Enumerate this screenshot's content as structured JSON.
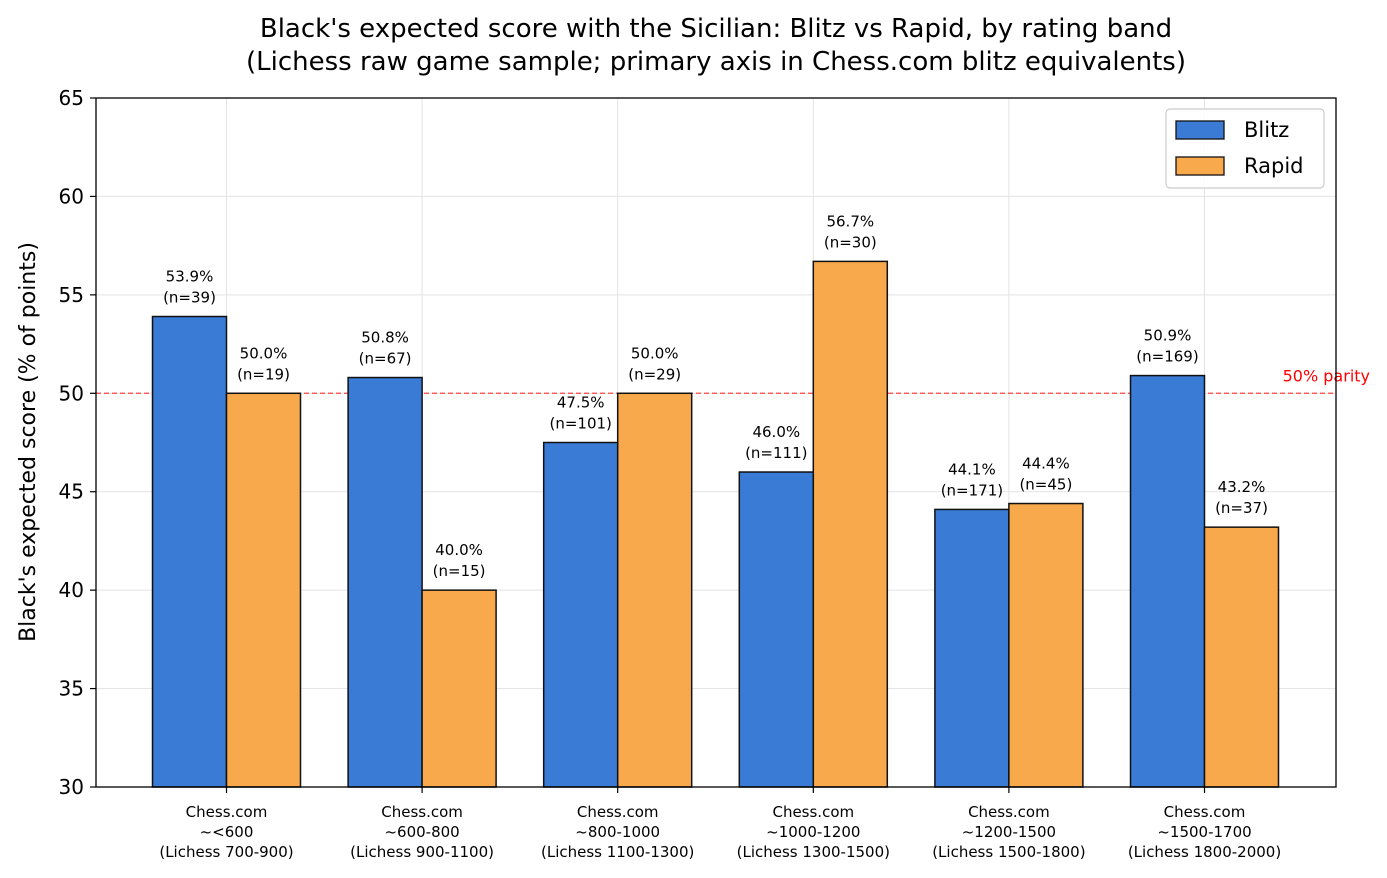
{
  "chart_data": {
    "type": "bar",
    "title": "Black's expected score with the Sicilian: Blitz vs Rapid, by rating band",
    "subtitle": "(Lichess raw game sample; primary axis in Chess.com blitz equivalents)",
    "xlabel": "",
    "ylabel": "Black's expected score (% of points)",
    "ylim": [
      30,
      65
    ],
    "yticks": [
      30,
      35,
      40,
      45,
      50,
      55,
      60,
      65
    ],
    "grid": true,
    "legend_position": "top-right",
    "categories": [
      [
        "Chess.com",
        "~<600",
        "(Lichess 700-900)"
      ],
      [
        "Chess.com",
        "~600-800",
        "(Lichess 900-1100)"
      ],
      [
        "Chess.com",
        "~800-1000",
        "(Lichess 1100-1300)"
      ],
      [
        "Chess.com",
        "~1000-1200",
        "(Lichess 1300-1500)"
      ],
      [
        "Chess.com",
        "~1200-1500",
        "(Lichess 1500-1800)"
      ],
      [
        "Chess.com",
        "~1500-1700",
        "(Lichess 1800-2000)"
      ]
    ],
    "series": [
      {
        "name": "Blitz",
        "color": "#3a7bd5",
        "values": [
          53.9,
          50.8,
          47.5,
          46.0,
          44.1,
          50.9
        ],
        "labels": [
          [
            "53.9%",
            "(n=39)"
          ],
          [
            "50.8%",
            "(n=67)"
          ],
          [
            "47.5%",
            "(n=101)"
          ],
          [
            "46.0%",
            "(n=111)"
          ],
          [
            "44.1%",
            "(n=171)"
          ],
          [
            "50.9%",
            "(n=169)"
          ]
        ]
      },
      {
        "name": "Rapid",
        "color": "#f7a94b",
        "values": [
          50.0,
          40.0,
          50.0,
          56.7,
          44.4,
          43.2
        ],
        "labels": [
          [
            "50.0%",
            "(n=19)"
          ],
          [
            "40.0%",
            "(n=15)"
          ],
          [
            "50.0%",
            "(n=29)"
          ],
          [
            "56.7%",
            "(n=30)"
          ],
          [
            "44.4%",
            "(n=45)"
          ],
          [
            "43.2%",
            "(n=37)"
          ]
        ]
      }
    ],
    "reference_line": {
      "value": 50,
      "label": "50% parity",
      "color": "#ff0000"
    }
  }
}
